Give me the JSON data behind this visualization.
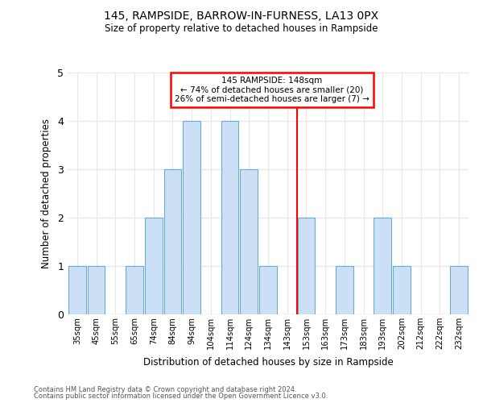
{
  "title1": "145, RAMPSIDE, BARROW-IN-FURNESS, LA13 0PX",
  "title2": "Size of property relative to detached houses in Rampside",
  "xlabel": "Distribution of detached houses by size in Rampside",
  "ylabel": "Number of detached properties",
  "categories": [
    "35sqm",
    "45sqm",
    "55sqm",
    "65sqm",
    "74sqm",
    "84sqm",
    "94sqm",
    "104sqm",
    "114sqm",
    "124sqm",
    "134sqm",
    "143sqm",
    "153sqm",
    "163sqm",
    "173sqm",
    "183sqm",
    "193sqm",
    "202sqm",
    "212sqm",
    "222sqm",
    "232sqm"
  ],
  "values": [
    1,
    1,
    0,
    1,
    2,
    3,
    4,
    0,
    4,
    3,
    1,
    0,
    2,
    0,
    1,
    0,
    2,
    1,
    0,
    0,
    1
  ],
  "bar_color": "#cce0f5",
  "bar_edge_color": "#6aabd2",
  "property_line_x": 11.5,
  "annotation_text_line1": "145 RAMPSIDE: 148sqm",
  "annotation_text_line2": "← 74% of detached houses are smaller (20)",
  "annotation_text_line3": "26% of semi-detached houses are larger (7) →",
  "ylim": [
    0,
    5
  ],
  "yticks": [
    0,
    1,
    2,
    3,
    4,
    5
  ],
  "footer1": "Contains HM Land Registry data © Crown copyright and database right 2024.",
  "footer2": "Contains public sector information licensed under the Open Government Licence v3.0.",
  "bg_color": "#ffffff"
}
